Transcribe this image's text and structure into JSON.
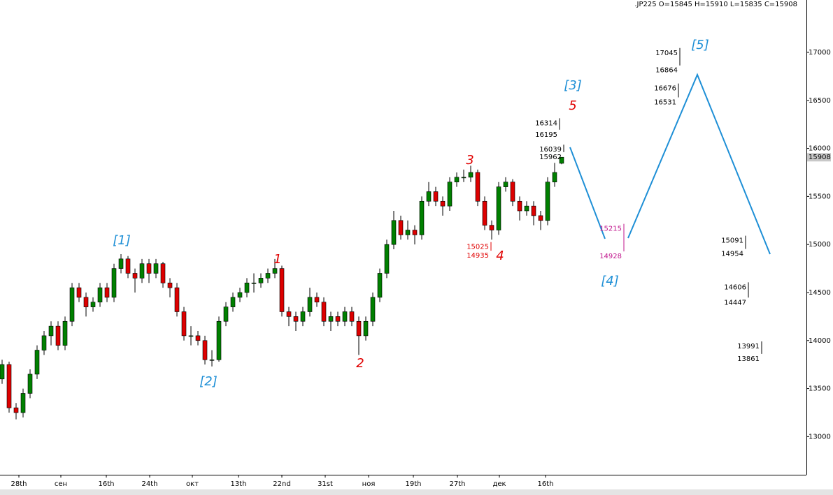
{
  "chart_data": {
    "type": "candlestick",
    "title": ".JP225 O=15845 H=15910 L=15835 C=15908",
    "up_color": "#008000",
    "down_color": "#dd0000",
    "wick_color": "#000000",
    "open": [
      13600,
      13750,
      13300,
      13250,
      13450,
      13650,
      13900,
      14050,
      14150,
      13950,
      14200,
      14550,
      14450,
      14350,
      14400,
      14550,
      14450,
      14750,
      14850,
      14700,
      14650,
      14800,
      14700,
      14800,
      14600,
      14550,
      14300,
      14050,
      14050,
      14000,
      13800,
      13800,
      14200,
      14350,
      14450,
      14500,
      14600,
      14600,
      14650,
      14700,
      14750,
      14300,
      14250,
      14200,
      14300,
      14450,
      14400,
      14200,
      14250,
      14200,
      14300,
      14200,
      14050,
      14200,
      14450,
      14700,
      15000,
      15250,
      15100,
      15150,
      15100,
      15450,
      15550,
      15450,
      15400,
      15650,
      15700,
      15700,
      15750,
      15450,
      15200,
      15150,
      15600,
      15650,
      15450,
      15350,
      15400,
      15300,
      15250,
      15650,
      15845
    ],
    "high": [
      13800,
      13780,
      13350,
      13500,
      13700,
      13950,
      14100,
      14200,
      14200,
      14250,
      14600,
      14600,
      14500,
      14450,
      14600,
      14600,
      14800,
      14900,
      14880,
      14750,
      14850,
      14850,
      14850,
      14820,
      14650,
      14600,
      14350,
      14150,
      14100,
      14050,
      13900,
      14250,
      14400,
      14500,
      14550,
      14650,
      14700,
      14700,
      14750,
      14850,
      14780,
      14350,
      14300,
      14350,
      14550,
      14500,
      14450,
      14300,
      14300,
      14350,
      14350,
      14250,
      14250,
      14500,
      14750,
      15050,
      15350,
      15300,
      15250,
      15200,
      15500,
      15650,
      15600,
      15500,
      15700,
      15750,
      15780,
      15820,
      15780,
      15500,
      15250,
      15650,
      15700,
      15680,
      15500,
      15450,
      15450,
      15350,
      15700,
      15850,
      15910
    ],
    "low": [
      13550,
      13250,
      13180,
      13200,
      13400,
      13600,
      13850,
      13950,
      13900,
      13900,
      14150,
      14400,
      14250,
      14300,
      14350,
      14400,
      14400,
      14700,
      14650,
      14500,
      14600,
      14600,
      14650,
      14550,
      14450,
      14250,
      14000,
      13950,
      13950,
      13750,
      13730,
      13780,
      14150,
      14300,
      14400,
      14450,
      14500,
      14550,
      14600,
      14650,
      14250,
      14150,
      14100,
      14150,
      14250,
      14350,
      14150,
      14100,
      14150,
      14150,
      14150,
      13850,
      14000,
      14150,
      14400,
      14650,
      14950,
      15050,
      15050,
      15000,
      15050,
      15400,
      15400,
      15300,
      15350,
      15600,
      15650,
      15650,
      15400,
      15150,
      15050,
      15100,
      15550,
      15400,
      15250,
      15300,
      15200,
      15150,
      15200,
      15600,
      15835
    ],
    "close": [
      13750,
      13300,
      13250,
      13450,
      13650,
      13900,
      14050,
      14150,
      13950,
      14200,
      14550,
      14450,
      14350,
      14400,
      14550,
      14450,
      14750,
      14850,
      14700,
      14650,
      14800,
      14700,
      14800,
      14600,
      14550,
      14300,
      14050,
      14050,
      14000,
      13800,
      13800,
      14200,
      14350,
      14450,
      14500,
      14600,
      14600,
      14650,
      14700,
      14750,
      14300,
      14250,
      14200,
      14300,
      14450,
      14400,
      14200,
      14250,
      14200,
      14300,
      14200,
      14050,
      14200,
      14450,
      14700,
      15000,
      15250,
      15100,
      15150,
      15100,
      15450,
      15550,
      15450,
      15400,
      15650,
      15700,
      15700,
      15750,
      15450,
      15200,
      15150,
      15600,
      15650,
      15450,
      15350,
      15400,
      15300,
      15250,
      15650,
      15750,
      15908
    ],
    "xlim": [
      -0.3,
      115
    ],
    "ylim": [
      12603,
      17545
    ],
    "yticks": [
      13000,
      13500,
      14000,
      14500,
      15000,
      15500,
      16000,
      16500,
      17000
    ],
    "xticks": [
      {
        "value": 2.4,
        "label": "28th"
      },
      {
        "value": 8.4,
        "label": "сен"
      },
      {
        "value": 14.9,
        "label": "16th"
      },
      {
        "value": 21.1,
        "label": "24th"
      },
      {
        "value": 27.2,
        "label": "окт"
      },
      {
        "value": 33.8,
        "label": "13th"
      },
      {
        "value": 40,
        "label": "22nd"
      },
      {
        "value": 46.2,
        "label": "31st"
      },
      {
        "value": 52.4,
        "label": "ноя"
      },
      {
        "value": 58.8,
        "label": "19th"
      },
      {
        "value": 65.1,
        "label": "27th"
      },
      {
        "value": 71.1,
        "label": "дек"
      },
      {
        "value": 77.7,
        "label": "16th"
      }
    ],
    "forecast": {
      "color": "#1e8fd6",
      "x": [
        81.2,
        86.2,
        87.0,
        89.5,
        99.4,
        109.8
      ],
      "values": [
        16012,
        15060,
        null,
        15067,
        16767,
        14900
      ]
    },
    "annotations": [
      {
        "text": "[1]",
        "x": 17.1,
        "y": 15038,
        "color": "#1e8fd6"
      },
      {
        "text": "[2]",
        "x": 29.5,
        "y": 13570,
        "color": "#1e8fd6"
      },
      {
        "text": "[3]",
        "x": 81.6,
        "y": 16651,
        "color": "#1e8fd6"
      },
      {
        "text": "[4]",
        "x": 86.9,
        "y": 14616,
        "color": "#1e8fd6"
      },
      {
        "text": "[5]",
        "x": 99.8,
        "y": 17073,
        "color": "#1e8fd6"
      },
      {
        "text": "1",
        "x": 39.4,
        "y": 14842,
        "color": "#e00000"
      },
      {
        "text": "2",
        "x": 51.2,
        "y": 13759,
        "color": "#e00000"
      },
      {
        "text": "3",
        "x": 66.9,
        "y": 15874,
        "color": "#e00000"
      },
      {
        "text": "4",
        "x": 71.2,
        "y": 14878,
        "color": "#e00000"
      },
      {
        "text": "5",
        "x": 81.6,
        "y": 16440,
        "color": "#e00000"
      }
    ],
    "levels": [
      {
        "high": 17045,
        "low": 16864,
        "x": 96.9,
        "color": "#000000"
      },
      {
        "high": 16676,
        "low": 16531,
        "x": 96.7,
        "color": "#000000"
      },
      {
        "high": 16314,
        "low": 16195,
        "x": 79.7,
        "color": "#000000"
      },
      {
        "high": 16039,
        "low": 15962,
        "x": 80.3,
        "color": "#000000"
      },
      {
        "high": 15215,
        "low": 14928,
        "x": 88.9,
        "color": "#c0148c"
      },
      {
        "high": 15025,
        "low": 14935,
        "x": 69.9,
        "color": "#e00000"
      },
      {
        "high": 15091,
        "low": 14954,
        "x": 106.3,
        "color": "#000000"
      },
      {
        "high": 14606,
        "low": 14447,
        "x": 106.7,
        "color": "#000000"
      },
      {
        "high": 13991,
        "low": 13861,
        "x": 108.6,
        "color": "#000000"
      }
    ]
  }
}
